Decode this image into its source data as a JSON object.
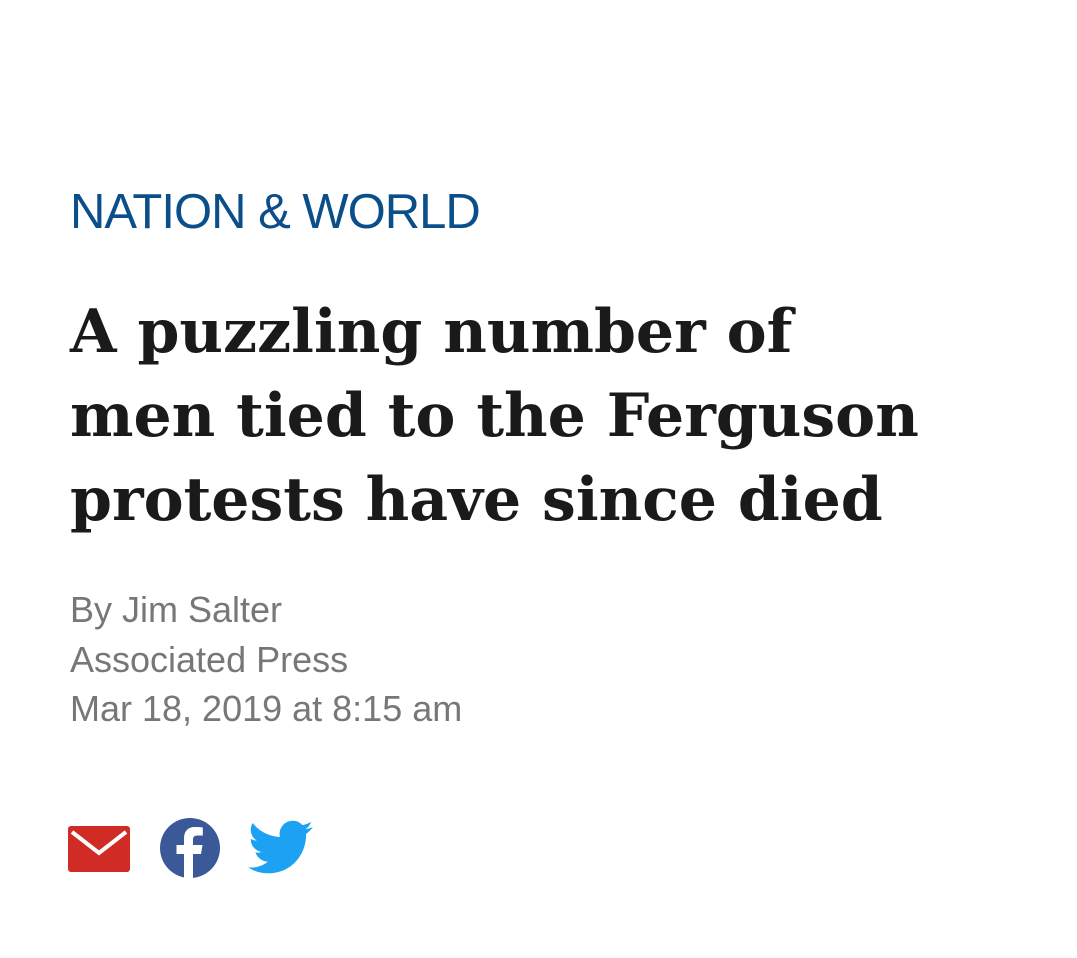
{
  "section": "NATION & WORLD",
  "headline": {
    "lines": [
      "A puzzling number of",
      "men tied to the Ferguson",
      "protests have since died"
    ]
  },
  "byline": "By Jim Salter",
  "source": "Associated Press",
  "date": "Mar 18, 2019 at 8:15 am"
}
